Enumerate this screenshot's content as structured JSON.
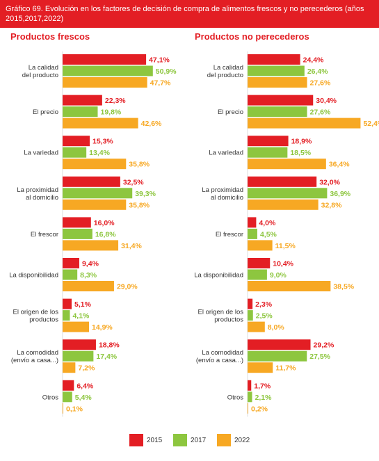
{
  "header": {
    "title": "Gráfico 69. Evolución en los factores de decisión de compra de alimentos frescos y no perecederos (años 2015,2017,2022)"
  },
  "colors": {
    "header_bg": "#e31e24",
    "title_red": "#e31e24",
    "2015": "#e31e24",
    "2017": "#8dc63f",
    "2022": "#f7a823",
    "label_2015": "#e31e24",
    "label_2017": "#8dc63f",
    "label_2022": "#f7a823"
  },
  "legend": {
    "items": [
      {
        "label": "2015",
        "color": "#e31e24"
      },
      {
        "label": "2017",
        "color": "#8dc63f"
      },
      {
        "label": "2022",
        "color": "#f7a823"
      }
    ]
  },
  "chart_data": [
    {
      "type": "bar",
      "orientation": "horizontal",
      "title": "Productos frescos",
      "categories": [
        [
          "La calidad",
          "del producto"
        ],
        [
          "El precio"
        ],
        [
          "La variedad"
        ],
        [
          "La proximidad",
          "al domicilio"
        ],
        [
          "El frescor"
        ],
        [
          "La disponibilidad"
        ],
        [
          "El origen de los",
          "productos"
        ],
        [
          "La comodidad",
          "(envío a casa...)"
        ],
        [
          "Otros"
        ]
      ],
      "series": [
        {
          "name": "2015",
          "values": [
            47.1,
            22.3,
            15.3,
            32.5,
            16.0,
            9.4,
            5.1,
            18.8,
            6.4
          ],
          "labels": [
            "47,1%",
            "22,3%",
            "15,3%",
            "32,5%",
            "16,0%",
            "9,4%",
            "5,1%",
            "18,8%",
            "6,4%"
          ]
        },
        {
          "name": "2017",
          "values": [
            50.9,
            19.8,
            13.4,
            39.3,
            16.8,
            8.3,
            4.1,
            17.4,
            5.4
          ],
          "labels": [
            "50,9%",
            "19,8%",
            "13,4%",
            "39,3%",
            "16,8%",
            "8,3%",
            "4,1%",
            "17,4%",
            "5,4%"
          ]
        },
        {
          "name": "2022",
          "values": [
            47.7,
            42.6,
            35.8,
            35.8,
            31.4,
            29.0,
            14.9,
            7.2,
            0.1
          ],
          "labels": [
            "47,7%",
            "42,6%",
            "35,8%",
            "35,8%",
            "31,4%",
            "29,0%",
            "14,9%",
            "7,2%",
            "0,1%"
          ]
        }
      ]
    },
    {
      "type": "bar",
      "orientation": "horizontal",
      "title": "Productos no perecederos",
      "categories": [
        [
          "La calidad",
          "del producto"
        ],
        [
          "El precio"
        ],
        [
          "La variedad"
        ],
        [
          "La proximidad",
          "al domicilio"
        ],
        [
          "El frescor"
        ],
        [
          "La disponibilidad"
        ],
        [
          "El origen de los",
          "productos"
        ],
        [
          "La comodidad",
          "(envío a casa...)"
        ],
        [
          "Otros"
        ]
      ],
      "series": [
        {
          "name": "2015",
          "values": [
            24.4,
            30.4,
            18.9,
            32.0,
            4.0,
            10.4,
            2.3,
            29.2,
            1.7
          ],
          "labels": [
            "24,4%",
            "30,4%",
            "18,9%",
            "32,0%",
            "4,0%",
            "10,4%",
            "2,3%",
            "29,2%",
            "1,7%"
          ]
        },
        {
          "name": "2017",
          "values": [
            26.4,
            27.6,
            18.5,
            36.9,
            4.5,
            9.0,
            2.5,
            27.5,
            2.1
          ],
          "labels": [
            "26,4%",
            "27,6%",
            "18,5%",
            "36,9%",
            "4,5%",
            "9,0%",
            "2,5%",
            "27,5%",
            "2,1%"
          ]
        },
        {
          "name": "2022",
          "values": [
            27.6,
            52.4,
            36.4,
            32.8,
            11.5,
            38.5,
            8.0,
            11.7,
            0.2
          ],
          "labels": [
            "27,6%",
            "52,4%",
            "36,4%",
            "32,8%",
            "11,5%",
            "38,5%",
            "8,0%",
            "11,7%",
            "0,2%"
          ]
        }
      ]
    }
  ]
}
